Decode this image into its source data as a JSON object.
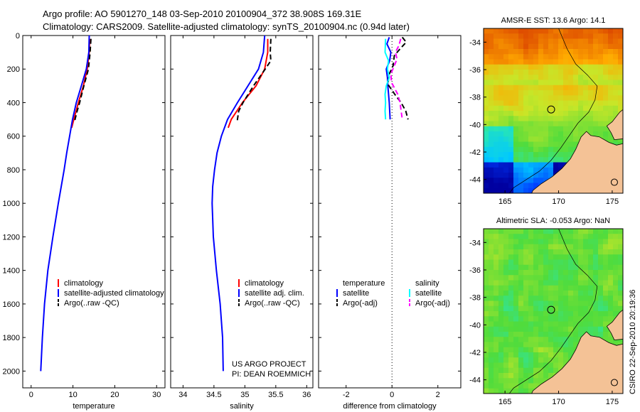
{
  "header": {
    "line1": "Argo profile: AO 5901270_148 03-Sep-2010 20100904_372 38.908S 169.31E",
    "line2": "Climatology: CARS2009. Satellite-adjusted climatology: synTS_20100904.nc (0.94d later)"
  },
  "stamp": "CSIRO 22-Sep-2010 20:19:36",
  "colors": {
    "climatology": "#ff0000",
    "satellite": "#0000ff",
    "argo": "#000000",
    "salinity_satellite": "#00ffff",
    "salinity_argo": "#ff00ff",
    "land": "#f4c296",
    "deep_sea": "#0a2a9a"
  },
  "chart_data": [
    {
      "id": "temperature",
      "type": "line",
      "xlabel": "temperature",
      "xlim": [
        -2,
        32
      ],
      "ylim": [
        0,
        2100
      ],
      "y_reversed": true,
      "xticks": [
        "0",
        "10",
        "20",
        "30"
      ],
      "yticks": [
        "0",
        "200",
        "400",
        "600",
        "800",
        "1000",
        "1200",
        "1400",
        "1600",
        "1800",
        "2000"
      ],
      "legend": [
        "climatology",
        "satellite-adjusted climatology",
        "Argo(..raw -QC)"
      ],
      "series": [
        {
          "name": "climatology",
          "color": "#ff0000",
          "dash": "",
          "depth": [
            20,
            100,
            200,
            300,
            400,
            500,
            550
          ],
          "values": [
            14.0,
            13.9,
            13.4,
            12.5,
            11.3,
            10.2,
            9.7
          ]
        },
        {
          "name": "satellite-adjusted climatology",
          "color": "#0000ff",
          "dash": "",
          "depth": [
            0,
            100,
            200,
            300,
            400,
            500,
            600,
            700,
            800,
            900,
            1000,
            1200,
            1400,
            1600,
            1800,
            2000
          ],
          "values": [
            13.9,
            13.8,
            13.2,
            12.0,
            10.8,
            9.9,
            9.2,
            8.5,
            7.9,
            7.2,
            6.5,
            5.2,
            4.0,
            3.2,
            2.7,
            2.3
          ]
        },
        {
          "name": "Argo(..raw -QC)",
          "color": "#000000",
          "dash": "7 4",
          "depth": [
            20,
            100,
            200,
            300,
            400,
            450,
            500,
            510
          ],
          "values": [
            14.3,
            14.1,
            13.7,
            12.6,
            11.6,
            11.0,
            10.5,
            10.6
          ]
        }
      ]
    },
    {
      "id": "salinity",
      "type": "line",
      "xlabel": "salinity",
      "xlim": [
        33.8,
        36.1
      ],
      "ylim": [
        0,
        2100
      ],
      "y_reversed": true,
      "xticks": [
        "34",
        "34.5",
        "35",
        "35.5",
        "36"
      ],
      "yticks": [],
      "legend": [
        "climatology",
        "satellite adj. clim.",
        "Argo(..raw -QC)"
      ],
      "annotation": [
        "US ARGO PROJECT",
        "PI: DEAN ROEMMICH"
      ],
      "series": [
        {
          "name": "climatology",
          "color": "#ff0000",
          "dash": "",
          "depth": [
            20,
            100,
            200,
            300,
            400,
            500,
            550
          ],
          "values": [
            35.37,
            35.37,
            35.32,
            35.18,
            34.96,
            34.78,
            34.73
          ]
        },
        {
          "name": "satellite adj. clim.",
          "color": "#0000ff",
          "dash": "",
          "depth": [
            0,
            100,
            200,
            300,
            400,
            500,
            600,
            700,
            800,
            900,
            1000,
            1200,
            1400,
            1600,
            1800,
            2000
          ],
          "values": [
            35.32,
            35.3,
            35.22,
            35.05,
            34.88,
            34.72,
            34.62,
            34.55,
            34.51,
            34.48,
            34.47,
            34.49,
            34.54,
            34.6,
            34.64,
            34.65
          ]
        },
        {
          "name": "Argo(..raw -QC)",
          "color": "#000000",
          "dash": "7 4",
          "depth": [
            20,
            100,
            150,
            200,
            300,
            400,
            450,
            500,
            510
          ],
          "values": [
            35.42,
            35.41,
            35.42,
            35.33,
            35.14,
            34.97,
            34.9,
            34.88,
            34.88
          ]
        }
      ]
    },
    {
      "id": "difference",
      "type": "line",
      "xlabel": "difference from climatology",
      "xlim": [
        -3.2,
        3.0
      ],
      "ylim": [
        0,
        2100
      ],
      "y_reversed": true,
      "xticks": [
        "-2",
        "0",
        "2"
      ],
      "yticks": [],
      "legend_headers": [
        "temperature",
        "salinity"
      ],
      "legend": [
        "satellite",
        "Argo(-adj)",
        "satellite",
        "Argo(-adj)"
      ],
      "series": [
        {
          "name": "temperature satellite",
          "color": "#0000ff",
          "dash": "",
          "depth": [
            10,
            50,
            100,
            150,
            200,
            250,
            300,
            350,
            400,
            450,
            500
          ],
          "values": [
            -0.12,
            -0.22,
            -0.05,
            -0.1,
            -0.25,
            -0.2,
            -0.18,
            -0.15,
            -0.12,
            -0.1,
            -0.08
          ]
        },
        {
          "name": "temperature Argo(-adj)",
          "color": "#000000",
          "dash": "7 4",
          "depth": [
            10,
            40,
            80,
            120,
            180,
            230,
            290,
            350,
            400,
            450,
            500
          ],
          "values": [
            0.45,
            0.62,
            0.35,
            0.1,
            0.05,
            -0.12,
            -0.18,
            0.12,
            0.4,
            0.6,
            0.7
          ]
        },
        {
          "name": "salinity satellite",
          "color": "#00ffff",
          "dash": "",
          "depth": [
            20,
            100,
            150,
            200,
            250,
            300,
            350,
            400,
            450,
            500
          ],
          "values": [
            -0.28,
            -0.3,
            -0.15,
            -0.2,
            -0.12,
            -0.25,
            -0.3,
            -0.28,
            -0.3,
            -0.28
          ]
        },
        {
          "name": "salinity Argo(-adj)",
          "color": "#ff00ff",
          "dash": "7 4",
          "depth": [
            20,
            60,
            100,
            140,
            180,
            230,
            280,
            350,
            400,
            450,
            500
          ],
          "values": [
            0.38,
            0.3,
            0.15,
            0.22,
            0.1,
            -0.05,
            -0.02,
            0.25,
            0.35,
            0.4,
            0.45
          ]
        }
      ]
    },
    {
      "id": "sst_map",
      "type": "heatmap",
      "title": "AMSR-E SST: 13.6 Argo: 14.1",
      "xlim": [
        163,
        176
      ],
      "ylim": [
        -45,
        -33
      ],
      "xticks": [
        "165",
        "170",
        "175"
      ],
      "yticks": [
        "-34",
        "-36",
        "-38",
        "-40",
        "-42",
        "-44"
      ],
      "marker": {
        "lon": 169.3,
        "lat": -38.9
      }
    },
    {
      "id": "sla_map",
      "type": "heatmap",
      "title": "Altimetric SLA: -0.053 Argo: NaN",
      "xlim": [
        163,
        176
      ],
      "ylim": [
        -45,
        -33
      ],
      "xticks": [
        "165",
        "170",
        "175"
      ],
      "yticks": [
        "-34",
        "-36",
        "-38",
        "-40",
        "-42",
        "-44"
      ],
      "marker": {
        "lon": 169.3,
        "lat": -38.9
      }
    }
  ]
}
